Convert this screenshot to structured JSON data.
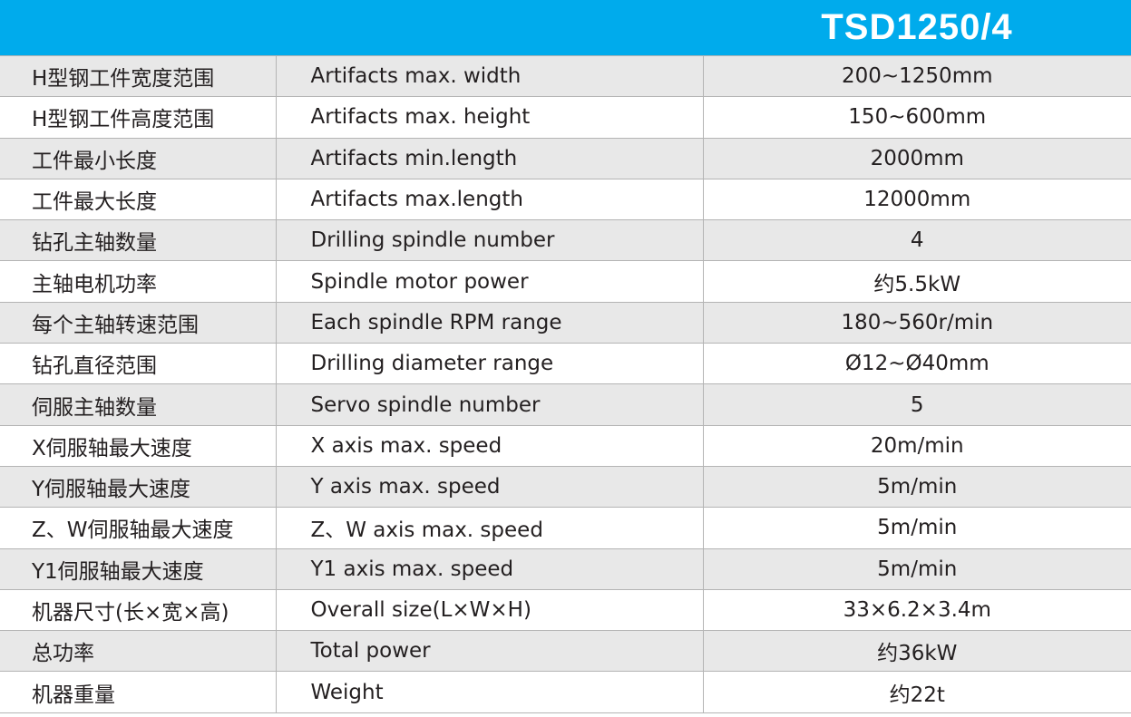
{
  "header": {
    "model": "TSD1250/4",
    "color": "#00abec"
  },
  "rows": [
    {
      "cn": "H型钢工件宽度范围",
      "en": "Artifacts max. width",
      "value": "200~1250mm"
    },
    {
      "cn": "H型钢工件高度范围",
      "en": "Artifacts max. height",
      "value": "150~600mm"
    },
    {
      "cn": "工件最小长度",
      "en": "Artifacts min.length",
      "value": "2000mm"
    },
    {
      "cn": "工件最大长度",
      "en": "Artifacts max.length",
      "value": "12000mm"
    },
    {
      "cn": "钻孔主轴数量",
      "en": "Drilling spindle number",
      "value": "4"
    },
    {
      "cn": "主轴电机功率",
      "en": "Spindle motor power",
      "value": "约5.5kW"
    },
    {
      "cn": "每个主轴转速范围",
      "en": "Each spindle RPM range",
      "value": "180~560r/min"
    },
    {
      "cn": "钻孔直径范围",
      "en": "Drilling diameter range",
      "value": "Ø12~Ø40mm"
    },
    {
      "cn": "伺服主轴数量",
      "en": "Servo spindle number",
      "value": "5"
    },
    {
      "cn": "X伺服轴最大速度",
      "en": "X axis max. speed",
      "value": "20m/min"
    },
    {
      "cn": "Y伺服轴最大速度",
      "en": "Y axis max. speed",
      "value": "5m/min"
    },
    {
      "cn": "Z、W伺服轴最大速度",
      "en": "Z、W axis max. speed",
      "value": "5m/min"
    },
    {
      "cn": "Y1伺服轴最大速度",
      "en": "Y1 axis max. speed",
      "value": "5m/min"
    },
    {
      "cn": "机器尺寸(长×宽×高)",
      "en": "Overall size(L×W×H)",
      "value": "33×6.2×3.4m"
    },
    {
      "cn": "总功率",
      "en": "Total power",
      "value": "约36kW"
    },
    {
      "cn": "机器重量",
      "en": "Weight",
      "value": "约22t"
    }
  ]
}
